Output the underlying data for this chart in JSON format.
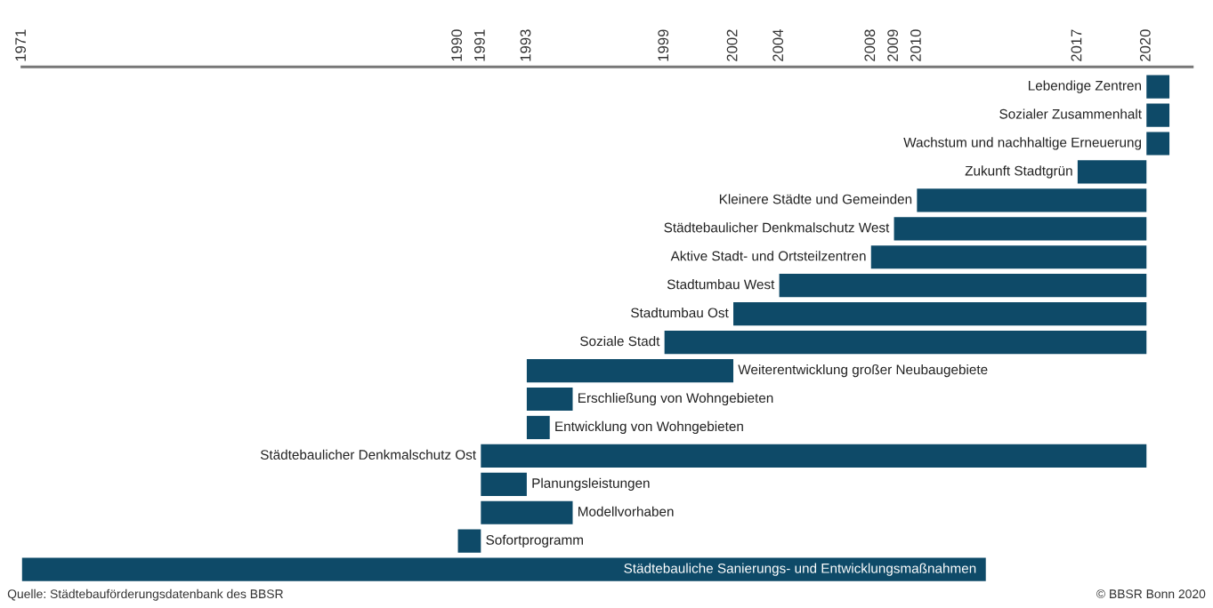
{
  "chart_data": {
    "type": "bar",
    "orientation": "horizontal",
    "categories": [
      "Lebendige Zentren",
      "Sozialer Zusammenhalt",
      "Wachstum und nachhaltige Erneuerung",
      "Zukunft Stadtgrün",
      "Kleinere Städte und Gemeinden",
      "Städtebaulicher Denkmalschutz West",
      "Aktive Stadt- und Ortsteilzentren",
      "Stadtumbau West",
      "Stadtumbau Ost",
      "Soziale Stadt",
      "Weiterentwicklung großer Neubaugebiete",
      "Erschließung von Wohngebieten",
      "Entwicklung von Wohngebieten",
      "Städtebaulicher Denkmalschutz Ost",
      "Planungsleistungen",
      "Modellvorhaben",
      "Sofortprogramm",
      "Städtebauliche Sanierungs- und Entwicklungsmaßnahmen"
    ],
    "base": [
      2020,
      2020,
      2020,
      2017,
      2010,
      2009,
      2008,
      2004,
      2002,
      1999,
      1993,
      1993,
      1993,
      1991,
      1991,
      1991,
      1990,
      1971
    ],
    "values": [
      1,
      1,
      1,
      3,
      10,
      11,
      12,
      16,
      18,
      21,
      9,
      2,
      1,
      29,
      2,
      4,
      1,
      42
    ],
    "color": "#0e4a68",
    "xlim": [
      1971,
      2022
    ],
    "xticks": [
      1971,
      1990,
      1991,
      1993,
      1999,
      2002,
      2004,
      2008,
      2009,
      2010,
      2017,
      2020
    ],
    "annotations": [
      "Quelle: Städtebauförderungsdatenbank des BBSR",
      "© BBSR Bonn 2020"
    ]
  }
}
